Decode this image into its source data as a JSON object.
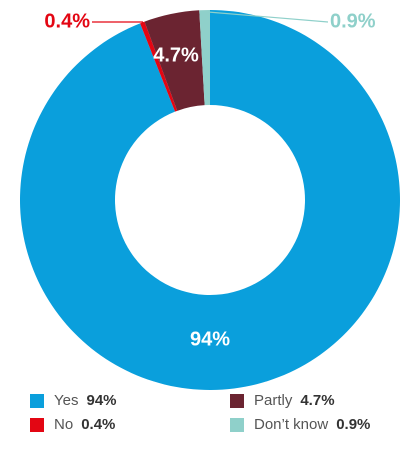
{
  "chart_data": {
    "type": "donut",
    "categories": [
      "Yes",
      "No",
      "Partly",
      "Don’t know"
    ],
    "values": [
      94,
      0.4,
      4.7,
      0.9
    ],
    "value_labels": [
      "94%",
      "0.4%",
      "4.7%",
      "0.9%"
    ],
    "colors": [
      "#0a9fdc",
      "#e30613",
      "#6b2431",
      "#8fd0ca"
    ]
  }
}
